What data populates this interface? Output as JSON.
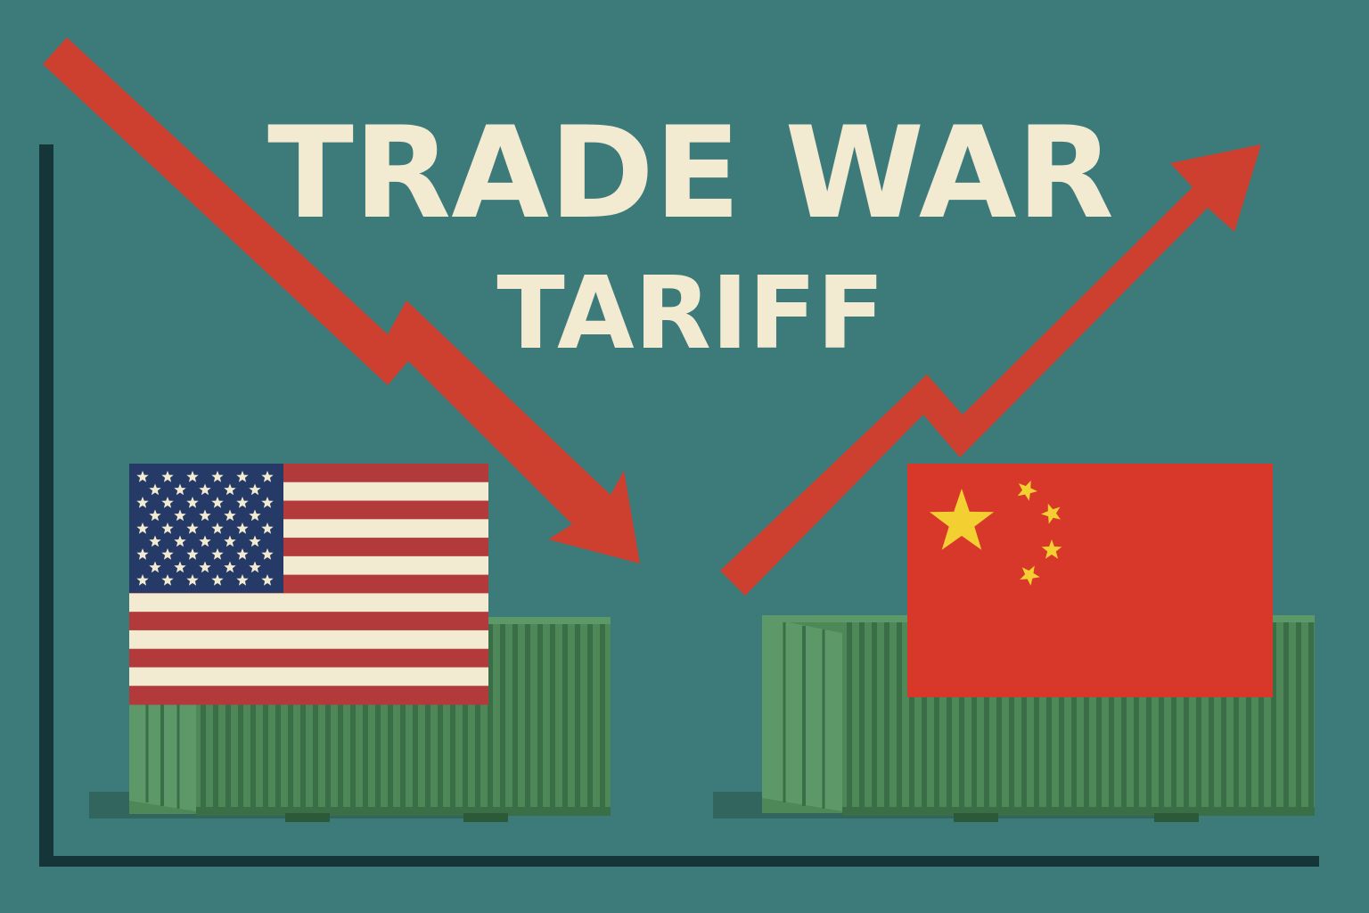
{
  "title": {
    "line1": "TRADE WAR",
    "line2": "TARIFF"
  },
  "colors": {
    "background": "#3d7a7a",
    "title_text": "#f3ead2",
    "trend_arrow": "#cd3f2e",
    "axis": "#143638",
    "container_body": "#4e8758",
    "container_ribs": "#3a6e46",
    "container_side": "#5c9868",
    "container_shadow": "#33655f",
    "us_red": "#b23a3a",
    "us_white": "#f3ead2",
    "us_blue": "#263a68",
    "cn_red": "#d8382a",
    "cn_yellow": "#f4cf32"
  },
  "icons": {
    "down_arrow": "trend-down-arrow-icon",
    "up_arrow": "trend-up-arrow-icon",
    "us_flag": "us-flag-icon",
    "cn_flag": "china-flag-icon",
    "left_container": "shipping-container-icon",
    "right_container": "shipping-container-icon"
  }
}
